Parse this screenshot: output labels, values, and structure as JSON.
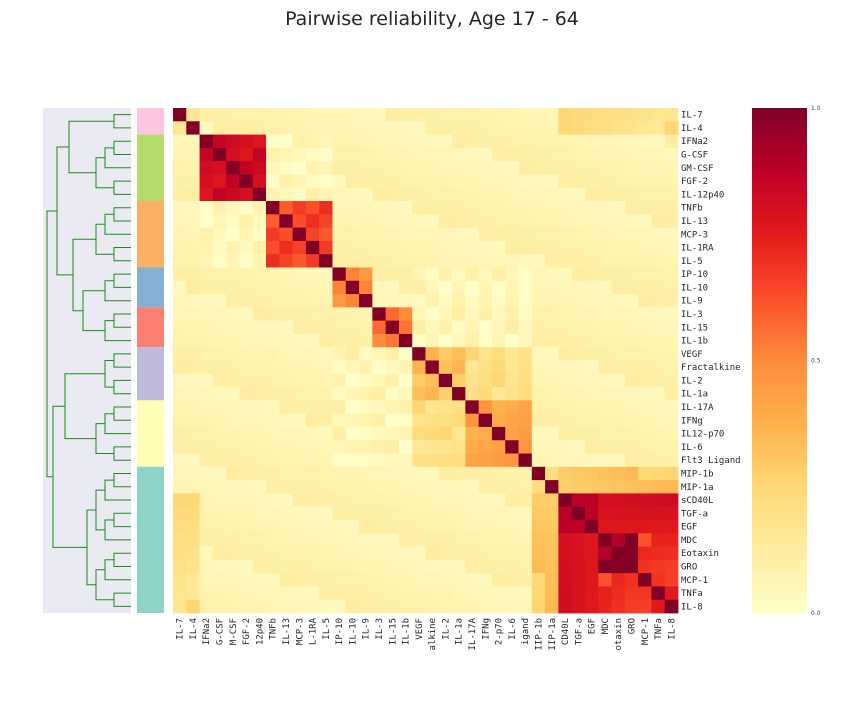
{
  "title": "Pairwise reliability, Age 17 - 64",
  "chart_data": {
    "type": "heatmap",
    "title": "Pairwise reliability, Age 17 - 64",
    "labels": [
      "IL-7",
      "IL-4",
      "IFNa2",
      "G-CSF",
      "GM-CSF",
      "FGF-2",
      "IL-12p40",
      "TNFb",
      "IL-13",
      "MCP-3",
      "IL-1RA",
      "IL-5",
      "IP-10",
      "IL-10",
      "IL-9",
      "IL-3",
      "IL-15",
      "IL-1b",
      "VEGF",
      "Fractalkine",
      "IL-2",
      "IL-1a",
      "IL-17A",
      "IFNg",
      "IL12-p70",
      "IL-6",
      "Flt3 Ligand",
      "MIP-1b",
      "MIP-1a",
      "sCD40L",
      "TGF-a",
      "EGF",
      "MDC",
      "Eotaxin",
      "GRO",
      "MCP-1",
      "TNFa",
      "IL-8"
    ],
    "col_tick_labels": [
      "IL-7",
      "IL-4",
      "IFNa2",
      "G-CSF",
      "M-CSF",
      "FGF-2",
      "12p40",
      "TNFb",
      "IL-13",
      "MCP-3",
      "L-1RA",
      "IL-5",
      "IP-10",
      "IL-10",
      "IL-9",
      "IL-3",
      "IL-15",
      "IL-1b",
      "VEGF",
      "alkine",
      "IL-2",
      "IL-1a",
      "IL-17A",
      "IFNg",
      "2-p70",
      "IL-6",
      "igand",
      "IIP-1b",
      "IIP-1a",
      "CD40L",
      "TGF-a",
      "EGF",
      "MDC",
      "otaxin",
      "GRO",
      "MCP-1",
      "TNFa",
      "IL-8"
    ],
    "clusters": [
      {
        "start": 0,
        "end": 1,
        "color": "#fcc5e0"
      },
      {
        "start": 2,
        "end": 6,
        "color": "#b5db6d"
      },
      {
        "start": 7,
        "end": 11,
        "color": "#fbb163"
      },
      {
        "start": 12,
        "end": 14,
        "color": "#84b0d3"
      },
      {
        "start": 15,
        "end": 17,
        "color": "#fb8072"
      },
      {
        "start": 18,
        "end": 21,
        "color": "#bebada"
      },
      {
        "start": 22,
        "end": 26,
        "color": "#ffffb6"
      },
      {
        "start": 27,
        "end": 37,
        "color": "#8dd3c7"
      }
    ],
    "blocks": [
      {
        "start": 0,
        "end": 1,
        "value": 0.18
      },
      {
        "start": 2,
        "end": 6,
        "value": 0.82
      },
      {
        "start": 7,
        "end": 11,
        "value": 0.65
      },
      {
        "start": 12,
        "end": 14,
        "value": 0.48
      },
      {
        "start": 15,
        "end": 17,
        "value": 0.56
      },
      {
        "start": 18,
        "end": 21,
        "value": 0.34
      },
      {
        "start": 22,
        "end": 26,
        "value": 0.42
      },
      {
        "start": 27,
        "end": 28,
        "value": 0.25
      },
      {
        "start": 29,
        "end": 31,
        "value": 0.9
      },
      {
        "start": 32,
        "end": 34,
        "value": 0.95
      },
      {
        "start": 35,
        "end": 37,
        "value": 0.72
      }
    ],
    "cross_blocks": [
      {
        "a": [
          0,
          1
        ],
        "b": [
          29,
          37
        ],
        "value": 0.2
      },
      {
        "a": [
          27,
          28
        ],
        "b": [
          29,
          37
        ],
        "value": 0.3
      },
      {
        "a": [
          29,
          31
        ],
        "b": [
          32,
          37
        ],
        "value": 0.8
      },
      {
        "a": [
          32,
          34
        ],
        "b": [
          35,
          37
        ],
        "value": 0.68
      },
      {
        "a": [
          2,
          6
        ],
        "b": [
          7,
          11
        ],
        "value": 0.05
      },
      {
        "a": [
          18,
          21
        ],
        "b": [
          22,
          26
        ],
        "value": 0.2
      },
      {
        "a": [
          12,
          17
        ],
        "b": [
          18,
          26
        ],
        "value": 0.06
      }
    ],
    "background_value": 0.04,
    "diagonal_value": 1.0,
    "colormap": [
      "#ffffcc",
      "#ffeda0",
      "#fed976",
      "#feb24c",
      "#fd8d3c",
      "#fc4e2a",
      "#e31a1c",
      "#bd0026",
      "#800026"
    ],
    "colorbar": {
      "min": 0.0,
      "max": 1.0,
      "ticks": [
        "1.0",
        "0.5",
        "0.0"
      ]
    },
    "dendrogram_color": "#1f8a1f",
    "dendrogram_bg": "#eaeaf2"
  }
}
